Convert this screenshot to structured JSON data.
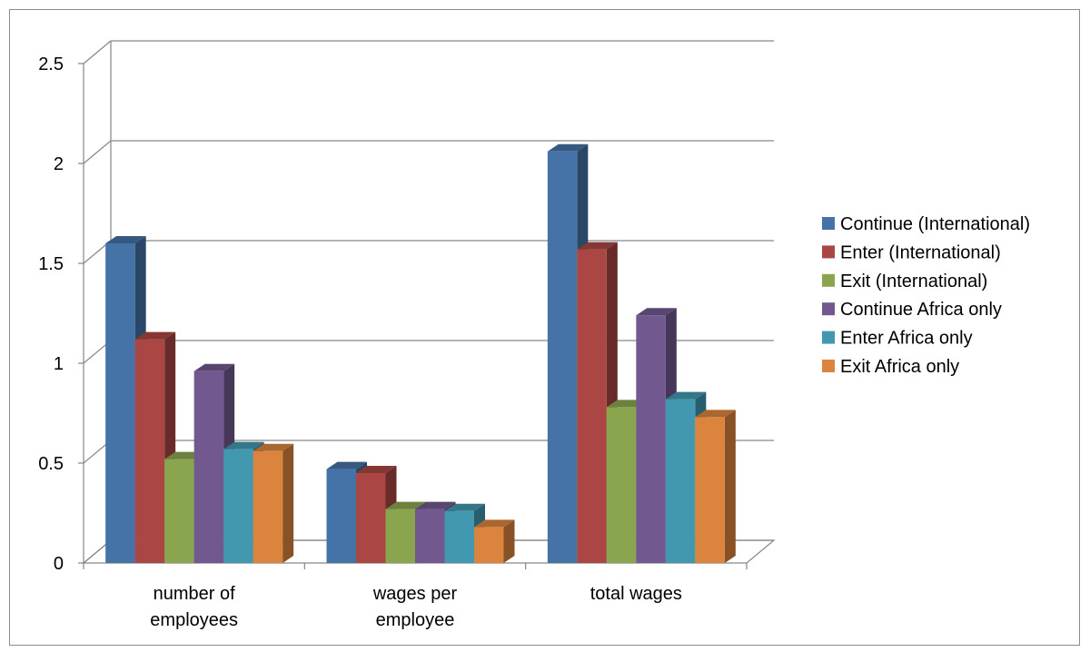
{
  "chart_data": {
    "type": "bar",
    "title": "",
    "xlabel": "",
    "ylabel": "",
    "ylim": [
      0,
      2.5
    ],
    "yticks": [
      "0",
      "0.5",
      "1",
      "1.5",
      "2",
      "2.5"
    ],
    "grid": true,
    "legend_position": "right",
    "categories": [
      [
        "number of",
        "employees"
      ],
      [
        "wages per",
        "employee"
      ],
      [
        "total wages"
      ]
    ],
    "series": [
      {
        "name": "Continue (International)",
        "color": "#4572A7",
        "values": [
          1.6,
          0.47,
          2.06
        ]
      },
      {
        "name": "Enter (International)",
        "color": "#AA4643",
        "values": [
          1.12,
          0.45,
          1.57
        ]
      },
      {
        "name": "Exit (International)",
        "color": "#89A54E",
        "values": [
          0.52,
          0.27,
          0.78
        ]
      },
      {
        "name": "Continue Africa only",
        "color": "#71588F",
        "values": [
          0.96,
          0.27,
          1.24
        ]
      },
      {
        "name": "Enter  Africa only",
        "color": "#4198AF",
        "values": [
          0.57,
          0.26,
          0.82
        ]
      },
      {
        "name": "Exit Africa only",
        "color": "#DB843D",
        "values": [
          0.56,
          0.18,
          0.73
        ]
      }
    ]
  }
}
